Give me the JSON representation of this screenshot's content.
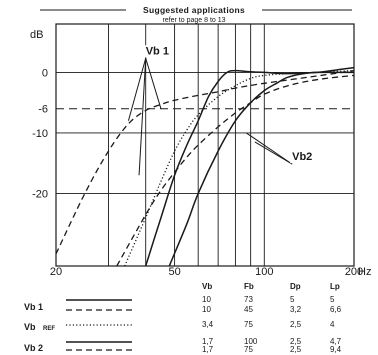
{
  "header": {
    "title": "Suggested applications",
    "subtitle": "refer to page 8 to 13"
  },
  "chart_data": {
    "type": "line",
    "xlabel_unit": "Hz",
    "ylabel_unit": "dB",
    "x_scale": "log",
    "xlim": [
      20,
      200
    ],
    "ylim": [
      -32,
      8
    ],
    "x_ticks": [
      {
        "value": 20,
        "label": "20"
      },
      {
        "value": 50,
        "label": "50"
      },
      {
        "value": 100,
        "label": "100"
      },
      {
        "value": 200,
        "label": "200"
      }
    ],
    "y_ticks": [
      {
        "value": 0,
        "label": "0"
      },
      {
        "value": -6,
        "label": "-6"
      },
      {
        "value": -10,
        "label": "-10"
      },
      {
        "value": -20,
        "label": "-20"
      }
    ],
    "x_minor_gridlines": [
      30,
      40,
      50,
      60,
      70,
      80,
      90,
      100
    ],
    "y_gridlines": [
      0,
      -10,
      -20
    ],
    "y_dashed_reference": -6,
    "grid": true,
    "series": [
      {
        "name": "Vb 1",
        "style": "solid",
        "points": [
          [
            40,
            -32
          ],
          [
            45,
            -24
          ],
          [
            50,
            -17
          ],
          [
            55,
            -12
          ],
          [
            60,
            -8
          ],
          [
            65,
            -4
          ],
          [
            70,
            -1.5
          ],
          [
            75,
            0
          ],
          [
            80,
            0.3
          ],
          [
            90,
            0.1
          ],
          [
            100,
            0
          ],
          [
            120,
            -0.2
          ],
          [
            150,
            0
          ],
          [
            180,
            0.5
          ],
          [
            200,
            0.8
          ]
        ]
      },
      {
        "name": "Vb 1",
        "style": "dashed",
        "points": [
          [
            20,
            -30
          ],
          [
            25,
            -20
          ],
          [
            30,
            -13
          ],
          [
            35,
            -8.5
          ],
          [
            40,
            -6.3
          ],
          [
            45,
            -5.3
          ],
          [
            50,
            -4.6
          ],
          [
            60,
            -3.8
          ],
          [
            70,
            -3.2
          ],
          [
            80,
            -2.6
          ],
          [
            100,
            -1.8
          ],
          [
            150,
            -0.6
          ],
          [
            200,
            0.3
          ]
        ]
      },
      {
        "name": "Vb REF",
        "style": "dotted",
        "points": [
          [
            34,
            -32
          ],
          [
            40,
            -24
          ],
          [
            45,
            -18
          ],
          [
            50,
            -13
          ],
          [
            55,
            -9.5
          ],
          [
            60,
            -7
          ],
          [
            70,
            -4
          ],
          [
            80,
            -2.2
          ],
          [
            90,
            -1
          ],
          [
            100,
            -0.5
          ],
          [
            120,
            -0.2
          ],
          [
            150,
            0
          ],
          [
            200,
            0.3
          ]
        ]
      },
      {
        "name": "Vb 2",
        "style": "solid",
        "points": [
          [
            48,
            -32
          ],
          [
            55,
            -25
          ],
          [
            60,
            -20
          ],
          [
            70,
            -13
          ],
          [
            80,
            -8
          ],
          [
            90,
            -5
          ],
          [
            100,
            -3
          ],
          [
            110,
            -1.8
          ],
          [
            120,
            -0.8
          ],
          [
            140,
            -0.1
          ],
          [
            160,
            0
          ],
          [
            200,
            0
          ]
        ]
      },
      {
        "name": "Vb 2",
        "style": "dashed",
        "points": [
          [
            32,
            -32
          ],
          [
            40,
            -23.5
          ],
          [
            45,
            -19.5
          ],
          [
            50,
            -16.5
          ],
          [
            55,
            -14
          ],
          [
            60,
            -12
          ],
          [
            70,
            -9
          ],
          [
            80,
            -6.7
          ],
          [
            90,
            -5
          ],
          [
            100,
            -3.6
          ],
          [
            120,
            -2.2
          ],
          [
            150,
            -1.2
          ],
          [
            200,
            -0.5
          ]
        ]
      }
    ],
    "annotations": [
      {
        "text": "Vb 1",
        "label_at": [
          40,
          3
        ],
        "pointers": [
          [
            35,
            -8
          ],
          [
            38,
            -17
          ],
          [
            45,
            -6
          ]
        ]
      },
      {
        "text": "Vb2",
        "label_at": [
          124,
          -14.5
        ],
        "pointers": [
          [
            87,
            -10
          ],
          [
            93,
            -11.5
          ]
        ]
      }
    ]
  },
  "legend_table": {
    "columns": [
      "Vb",
      "Fb",
      "Dp",
      "Lp"
    ],
    "rows": [
      {
        "label": "Vb 1",
        "label_sub": "",
        "lines": [
          "solid",
          "dashed"
        ],
        "values": [
          [
            "10",
            "73",
            "5",
            "5"
          ],
          [
            "10",
            "45",
            "3,2",
            "6,6"
          ]
        ]
      },
      {
        "label": "Vb",
        "label_sub": "REF",
        "lines": [
          "dotted"
        ],
        "values": [
          [
            "3,4",
            "75",
            "2,5",
            "4"
          ]
        ]
      },
      {
        "label": "Vb 2",
        "label_sub": "",
        "lines": [
          "solid",
          "dashed"
        ],
        "values": [
          [
            "1,7",
            "100",
            "2,5",
            "4,7"
          ],
          [
            "1,7",
            "75",
            "2,5",
            "9,4"
          ]
        ]
      }
    ]
  }
}
